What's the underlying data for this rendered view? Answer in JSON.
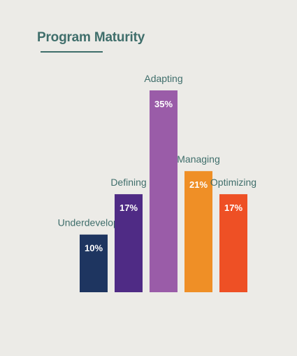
{
  "header": {
    "title": "Program Maturity"
  },
  "chart_data": {
    "type": "bar",
    "title": "Program Maturity",
    "xlabel": "",
    "ylabel": "",
    "categories": [
      "Underdeveloped",
      "Defining",
      "Adapting",
      "Managing",
      "Optimizing"
    ],
    "values": [
      10,
      17,
      35,
      21,
      17
    ],
    "value_labels": [
      "10%",
      "17%",
      "35%",
      "21%",
      "17%"
    ],
    "colors": [
      "#1e3560",
      "#4f2b85",
      "#9a5ca8",
      "#ef8f26",
      "#ee5025"
    ],
    "ylim": [
      0,
      35
    ],
    "grid": false,
    "legend": "none"
  }
}
